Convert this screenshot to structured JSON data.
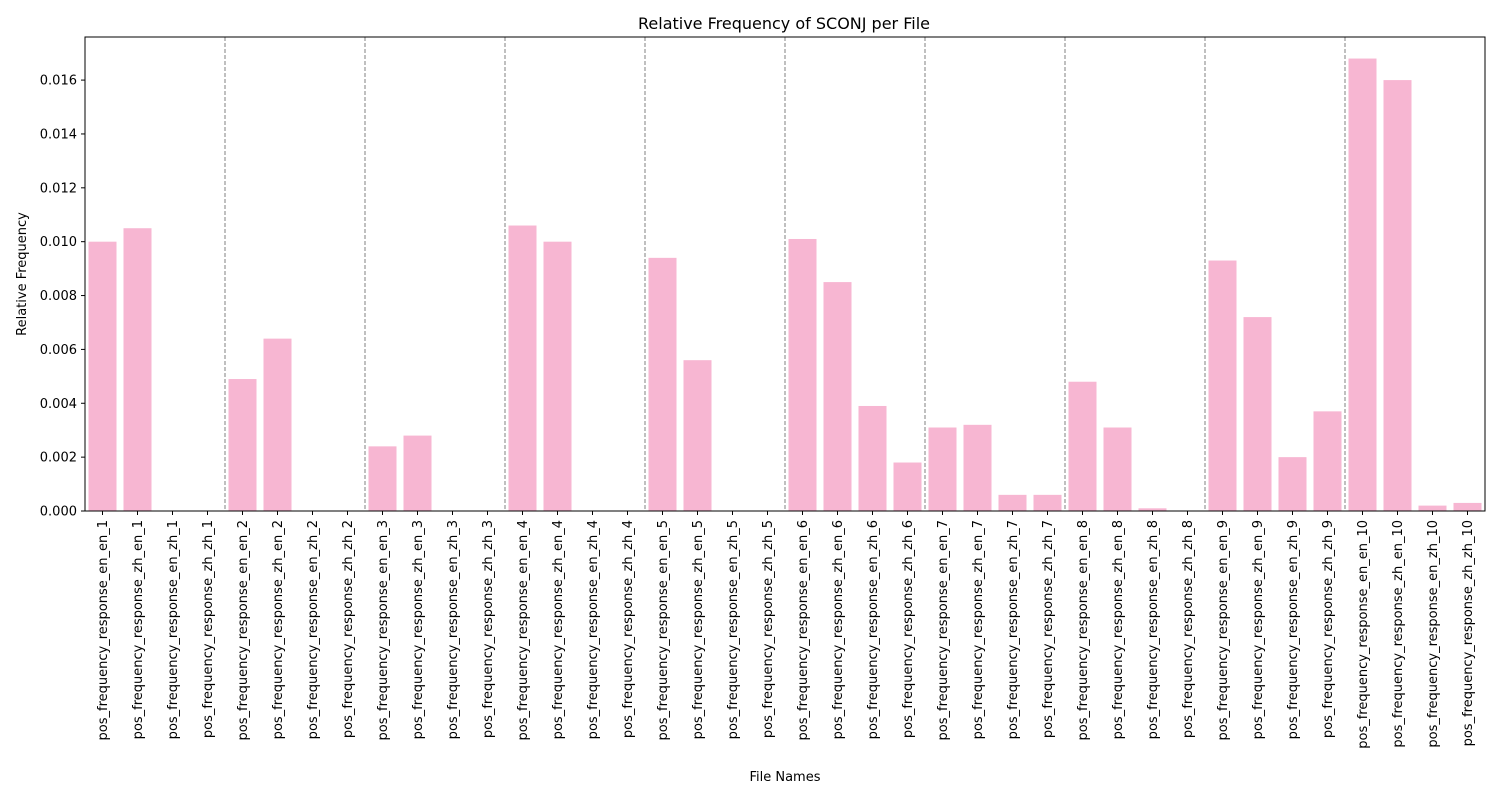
{
  "chart_data": {
    "type": "bar",
    "title": "Relative Frequency of SCONJ per File",
    "xlabel": "File Names",
    "ylabel": "Relative Frequency",
    "ylim": [
      0,
      0.0176
    ],
    "yticks": [
      "0.000",
      "0.002",
      "0.004",
      "0.006",
      "0.008",
      "0.010",
      "0.012",
      "0.014",
      "0.016"
    ],
    "bar_color": "#f7b6d2",
    "separator_color": "#808080",
    "group_size": 4,
    "grid": false,
    "categories": [
      "pos_frequency_response_en_en_1",
      "pos_frequency_response_zh_en_1",
      "pos_frequency_response_en_zh_1",
      "pos_frequency_response_zh_zh_1",
      "pos_frequency_response_en_en_2",
      "pos_frequency_response_zh_en_2",
      "pos_frequency_response_en_zh_2",
      "pos_frequency_response_zh_zh_2",
      "pos_frequency_response_en_en_3",
      "pos_frequency_response_zh_en_3",
      "pos_frequency_response_en_zh_3",
      "pos_frequency_response_zh_zh_3",
      "pos_frequency_response_en_en_4",
      "pos_frequency_response_zh_en_4",
      "pos_frequency_response_en_zh_4",
      "pos_frequency_response_zh_zh_4",
      "pos_frequency_response_en_en_5",
      "pos_frequency_response_zh_en_5",
      "pos_frequency_response_en_zh_5",
      "pos_frequency_response_zh_zh_5",
      "pos_frequency_response_en_en_6",
      "pos_frequency_response_zh_en_6",
      "pos_frequency_response_en_zh_6",
      "pos_frequency_response_zh_zh_6",
      "pos_frequency_response_en_en_7",
      "pos_frequency_response_zh_en_7",
      "pos_frequency_response_en_zh_7",
      "pos_frequency_response_zh_zh_7",
      "pos_frequency_response_en_en_8",
      "pos_frequency_response_zh_en_8",
      "pos_frequency_response_en_zh_8",
      "pos_frequency_response_zh_zh_8",
      "pos_frequency_response_en_en_9",
      "pos_frequency_response_zh_en_9",
      "pos_frequency_response_en_zh_9",
      "pos_frequency_response_zh_zh_9",
      "pos_frequency_response_en_en_10",
      "pos_frequency_response_zh_en_10",
      "pos_frequency_response_en_zh_10",
      "pos_frequency_response_zh_zh_10"
    ],
    "values": [
      0.01,
      0.0105,
      0.0,
      0.0,
      0.0049,
      0.0064,
      0.0,
      0.0,
      0.0024,
      0.0028,
      0.0,
      0.0,
      0.0106,
      0.01,
      0.0,
      0.0,
      0.0094,
      0.0056,
      0.0,
      0.0,
      0.0101,
      0.0085,
      0.0039,
      0.0018,
      0.0031,
      0.0032,
      0.0006,
      0.0006,
      0.0048,
      0.0031,
      0.0001,
      0.0,
      0.0093,
      0.0072,
      0.002,
      0.0037,
      0.0168,
      0.016,
      0.0002,
      0.0003
    ]
  }
}
